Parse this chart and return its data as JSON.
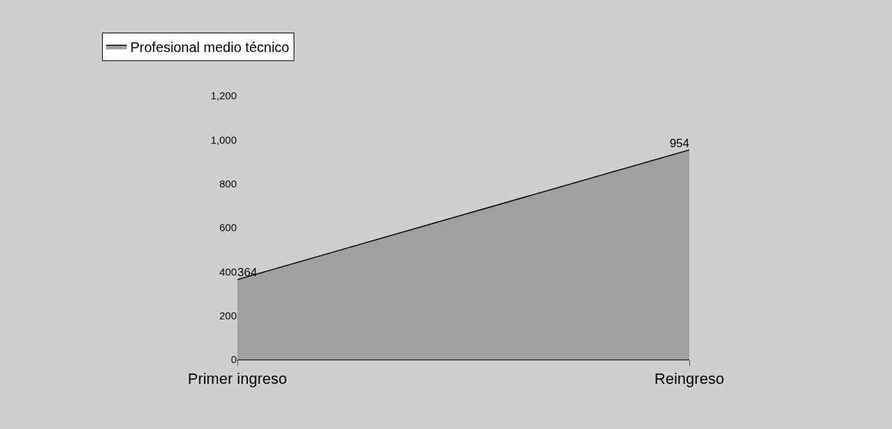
{
  "chart_data": {
    "type": "area",
    "categories": [
      "Primer ingreso",
      "Reingreso"
    ],
    "series": [
      {
        "name": "Profesional medio técnico",
        "color": "#a0a0a0",
        "values": [
          364,
          954
        ]
      }
    ],
    "ylim": [
      0,
      1200
    ],
    "yticks": [
      0,
      200,
      400,
      600,
      800,
      {
        "value": 1000,
        "label": "1,000"
      },
      {
        "value": 1200,
        "label": "1,200"
      }
    ],
    "data_labels": true,
    "grid": false,
    "legend": "top left"
  }
}
